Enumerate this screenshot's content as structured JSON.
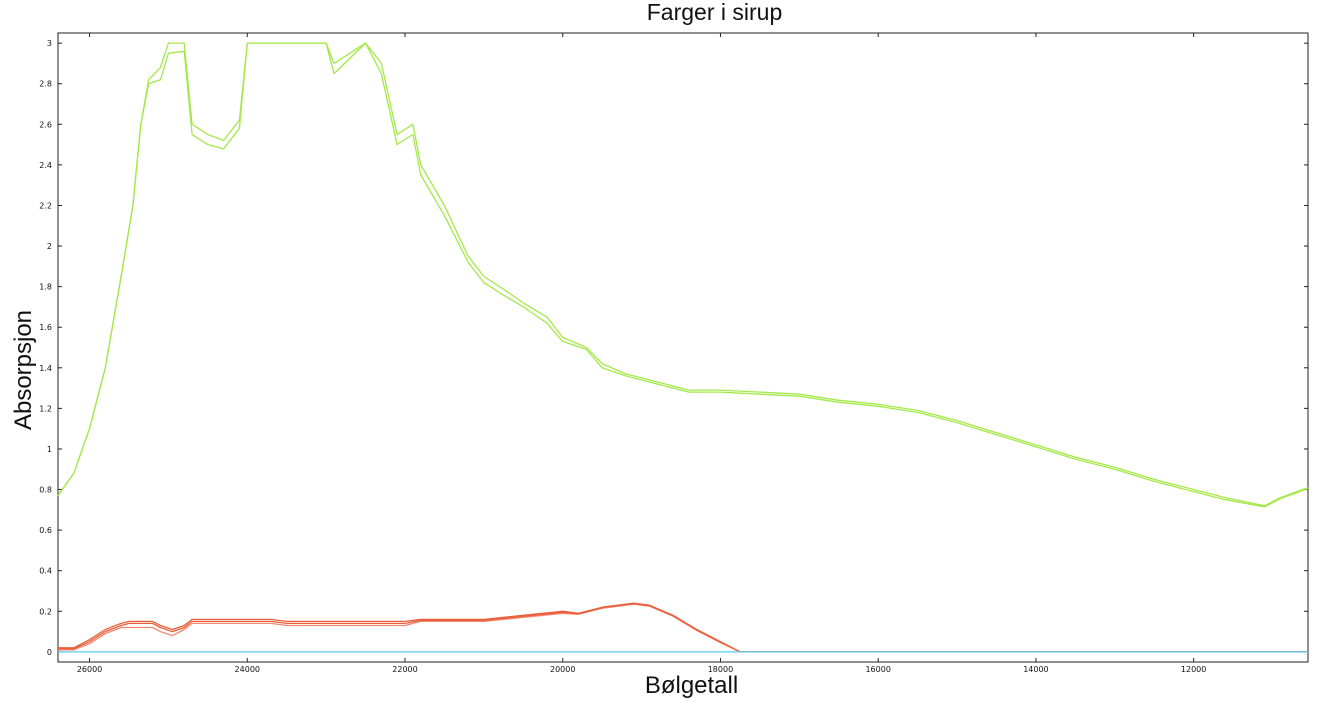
{
  "chart_data": {
    "type": "line",
    "title": "Farger i sirup",
    "xlabel": "Bølgetall",
    "ylabel": "Absorpsjon",
    "xlim": [
      26400,
      10550
    ],
    "ylim": [
      -0.05,
      3.05
    ],
    "x_reversed": true,
    "xticks": [
      26000,
      24000,
      22000,
      20000,
      18000,
      16000,
      14000,
      12000
    ],
    "yticks": [
      0,
      0.2,
      0.4,
      0.6,
      0.8,
      1,
      1.2,
      1.4,
      1.6,
      1.8,
      2,
      2.2,
      2.4,
      2.6,
      2.8,
      3
    ],
    "ytick_labels": [
      "0",
      "0.2",
      "0.4",
      "0.6",
      "0.8",
      "1",
      "1.2",
      "1.4",
      "1.6",
      "1.8",
      "2",
      "2.2",
      "2.4",
      "2.6",
      "2.8",
      "3"
    ],
    "grid": false,
    "series": [
      {
        "color": "#a4e84a",
        "points": [
          [
            26400,
            0.77
          ],
          [
            26200,
            0.88
          ],
          [
            26000,
            1.1
          ],
          [
            25800,
            1.4
          ],
          [
            25600,
            1.85
          ],
          [
            25450,
            2.2
          ],
          [
            25350,
            2.6
          ],
          [
            25250,
            2.82
          ],
          [
            25100,
            2.88
          ],
          [
            25000,
            3.0
          ],
          [
            24800,
            3.0
          ],
          [
            24700,
            2.6
          ],
          [
            24500,
            2.55
          ],
          [
            24300,
            2.52
          ],
          [
            24100,
            2.62
          ],
          [
            24000,
            3.0
          ],
          [
            23000,
            3.0
          ],
          [
            22900,
            2.9
          ],
          [
            22500,
            3.0
          ],
          [
            22300,
            2.9
          ],
          [
            22100,
            2.55
          ],
          [
            21900,
            2.6
          ],
          [
            21800,
            2.4
          ],
          [
            21500,
            2.2
          ],
          [
            21200,
            1.95
          ],
          [
            21000,
            1.85
          ],
          [
            20800,
            1.8
          ],
          [
            20500,
            1.72
          ],
          [
            20200,
            1.65
          ],
          [
            20000,
            1.55
          ],
          [
            19700,
            1.5
          ],
          [
            19500,
            1.42
          ],
          [
            19200,
            1.37
          ],
          [
            19000,
            1.35
          ],
          [
            18700,
            1.32
          ],
          [
            18400,
            1.29
          ],
          [
            18000,
            1.29
          ],
          [
            17500,
            1.28
          ],
          [
            17000,
            1.27
          ],
          [
            16500,
            1.24
          ],
          [
            16000,
            1.22
          ],
          [
            15500,
            1.19
          ],
          [
            15000,
            1.14
          ],
          [
            14500,
            1.08
          ],
          [
            14000,
            1.02
          ],
          [
            13500,
            0.96
          ],
          [
            13000,
            0.91
          ],
          [
            12500,
            0.85
          ],
          [
            12000,
            0.8
          ],
          [
            11600,
            0.76
          ],
          [
            11100,
            0.72
          ],
          [
            10900,
            0.76
          ],
          [
            10550,
            0.81
          ]
        ]
      },
      {
        "color": "#a4e84a",
        "points": [
          [
            26400,
            0.77
          ],
          [
            26200,
            0.88
          ],
          [
            26000,
            1.1
          ],
          [
            25800,
            1.4
          ],
          [
            25600,
            1.85
          ],
          [
            25450,
            2.2
          ],
          [
            25350,
            2.6
          ],
          [
            25250,
            2.8
          ],
          [
            25100,
            2.82
          ],
          [
            25000,
            2.95
          ],
          [
            24800,
            2.96
          ],
          [
            24700,
            2.55
          ],
          [
            24500,
            2.5
          ],
          [
            24300,
            2.48
          ],
          [
            24100,
            2.58
          ],
          [
            24000,
            3.0
          ],
          [
            23000,
            3.0
          ],
          [
            22900,
            2.85
          ],
          [
            22500,
            3.0
          ],
          [
            22300,
            2.85
          ],
          [
            22100,
            2.5
          ],
          [
            21900,
            2.55
          ],
          [
            21800,
            2.35
          ],
          [
            21500,
            2.15
          ],
          [
            21200,
            1.92
          ],
          [
            21000,
            1.82
          ],
          [
            20800,
            1.77
          ],
          [
            20500,
            1.7
          ],
          [
            20200,
            1.62
          ],
          [
            20000,
            1.53
          ],
          [
            19700,
            1.49
          ],
          [
            19500,
            1.4
          ],
          [
            19200,
            1.36
          ],
          [
            19000,
            1.34
          ],
          [
            18700,
            1.31
          ],
          [
            18400,
            1.28
          ],
          [
            18000,
            1.28
          ],
          [
            17500,
            1.27
          ],
          [
            17000,
            1.26
          ],
          [
            16500,
            1.23
          ],
          [
            16000,
            1.21
          ],
          [
            15500,
            1.18
          ],
          [
            15000,
            1.13
          ],
          [
            14500,
            1.07
          ],
          [
            14000,
            1.01
          ],
          [
            13500,
            0.95
          ],
          [
            13000,
            0.9
          ],
          [
            12500,
            0.84
          ],
          [
            12000,
            0.79
          ],
          [
            11600,
            0.75
          ],
          [
            11100,
            0.715
          ],
          [
            10900,
            0.755
          ],
          [
            10550,
            0.805
          ]
        ]
      },
      {
        "color": "#e8603c",
        "points": [
          [
            26400,
            0.02
          ],
          [
            26200,
            0.02
          ],
          [
            26000,
            0.06
          ],
          [
            25800,
            0.11
          ],
          [
            25600,
            0.14
          ],
          [
            25500,
            0.15
          ],
          [
            25200,
            0.15
          ],
          [
            25100,
            0.13
          ],
          [
            24950,
            0.11
          ],
          [
            24800,
            0.13
          ],
          [
            24700,
            0.16
          ],
          [
            24000,
            0.16
          ],
          [
            23700,
            0.16
          ],
          [
            23500,
            0.15
          ],
          [
            22000,
            0.15
          ],
          [
            21800,
            0.16
          ],
          [
            21000,
            0.16
          ],
          [
            20500,
            0.18
          ],
          [
            20000,
            0.2
          ],
          [
            19800,
            0.19
          ],
          [
            19500,
            0.22
          ],
          [
            19300,
            0.23
          ],
          [
            19100,
            0.24
          ],
          [
            18900,
            0.23
          ],
          [
            18600,
            0.18
          ],
          [
            18300,
            0.11
          ],
          [
            18000,
            0.05
          ],
          [
            17750,
            0.0
          ],
          [
            10550,
            0.0
          ]
        ]
      },
      {
        "color": "#f08a72",
        "points": [
          [
            26400,
            0.01
          ],
          [
            26200,
            0.01
          ],
          [
            26000,
            0.04
          ],
          [
            25800,
            0.09
          ],
          [
            25600,
            0.12
          ],
          [
            25500,
            0.12
          ],
          [
            25200,
            0.12
          ],
          [
            25100,
            0.1
          ],
          [
            24950,
            0.08
          ],
          [
            24800,
            0.11
          ],
          [
            24700,
            0.14
          ],
          [
            24000,
            0.14
          ],
          [
            23700,
            0.14
          ],
          [
            23500,
            0.13
          ],
          [
            22000,
            0.13
          ],
          [
            21800,
            0.15
          ],
          [
            21000,
            0.15
          ],
          [
            20500,
            0.17
          ],
          [
            20000,
            0.19
          ],
          [
            19800,
            0.185
          ],
          [
            19500,
            0.215
          ],
          [
            19300,
            0.225
          ],
          [
            19100,
            0.235
          ],
          [
            18900,
            0.225
          ],
          [
            18600,
            0.175
          ],
          [
            18300,
            0.105
          ],
          [
            18000,
            0.045
          ],
          [
            17750,
            0.0
          ],
          [
            10550,
            0.0
          ]
        ]
      },
      {
        "color": "#e8603c",
        "points": [
          [
            26400,
            0.015
          ],
          [
            26200,
            0.015
          ],
          [
            26000,
            0.05
          ],
          [
            25800,
            0.1
          ],
          [
            25600,
            0.13
          ],
          [
            25500,
            0.14
          ],
          [
            25200,
            0.14
          ],
          [
            25100,
            0.12
          ],
          [
            24950,
            0.1
          ],
          [
            24800,
            0.12
          ],
          [
            24700,
            0.15
          ],
          [
            24000,
            0.15
          ],
          [
            23700,
            0.15
          ],
          [
            23500,
            0.14
          ],
          [
            22000,
            0.14
          ],
          [
            21800,
            0.155
          ],
          [
            21000,
            0.155
          ],
          [
            20500,
            0.175
          ],
          [
            20000,
            0.195
          ],
          [
            19800,
            0.188
          ],
          [
            19500,
            0.218
          ],
          [
            19300,
            0.228
          ],
          [
            19100,
            0.238
          ],
          [
            18900,
            0.228
          ],
          [
            18600,
            0.178
          ],
          [
            18300,
            0.108
          ],
          [
            18000,
            0.048
          ],
          [
            17750,
            0.0
          ],
          [
            10550,
            0.0
          ]
        ]
      },
      {
        "color": "#5ac8f0",
        "points": [
          [
            26400,
            0.0
          ],
          [
            10550,
            0.0
          ]
        ]
      }
    ]
  }
}
